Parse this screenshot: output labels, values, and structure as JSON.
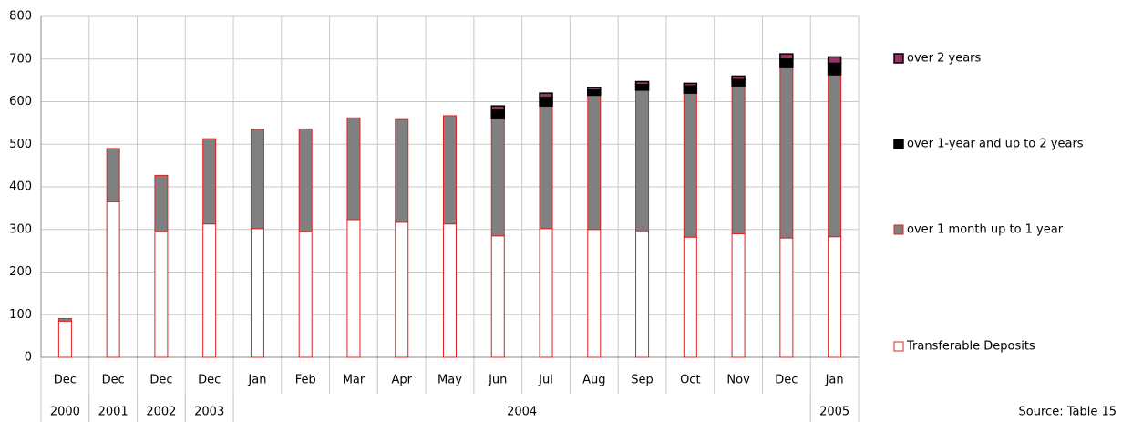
{
  "chart_data": {
    "type": "stacked-bar",
    "category_groups": [
      {
        "label": "2000",
        "categories": [
          "Dec"
        ]
      },
      {
        "label": "2001",
        "categories": [
          "Dec"
        ]
      },
      {
        "label": "2002",
        "categories": [
          "Dec"
        ]
      },
      {
        "label": "2003",
        "categories": [
          "Dec"
        ]
      },
      {
        "label": "2004",
        "categories": [
          "Jan",
          "Feb",
          "Mar",
          "Apr",
          "May",
          "Jun",
          "Jul",
          "Aug",
          "Sep",
          "Oct",
          "Nov",
          "Dec"
        ]
      },
      {
        "label": "2005",
        "categories": [
          "Jan"
        ]
      }
    ],
    "series": [
      {
        "name": "Transferable Deposits",
        "color": "#ffffff",
        "stroke": "#e02020",
        "values": [
          85,
          365,
          295,
          313,
          302,
          295,
          323,
          317,
          313,
          285,
          302,
          300,
          297,
          282,
          290,
          280,
          283
        ]
      },
      {
        "name": "over 1 month up to 1 year",
        "color": "#808080",
        "stroke": "#e02020",
        "values": [
          6,
          125,
          132,
          200,
          233,
          241,
          239,
          241,
          254,
          275,
          288,
          315,
          330,
          338,
          347,
          400,
          380
        ]
      },
      {
        "name": "over 1-year and up to 2 years",
        "color": "#000000",
        "stroke": "#000000",
        "values": [
          0,
          0,
          0,
          0,
          0,
          0,
          0,
          0,
          0,
          20,
          20,
          12,
          13,
          17,
          15,
          20,
          27
        ]
      },
      {
        "name": "over 2 years",
        "color": "#993366",
        "stroke": "#000000",
        "values": [
          0,
          0,
          0,
          0,
          0,
          0,
          0,
          0,
          0,
          10,
          10,
          6,
          7,
          6,
          8,
          12,
          15
        ]
      }
    ],
    "ylim": [
      0,
      800
    ],
    "yticks": [
      0,
      100,
      200,
      300,
      400,
      500,
      600,
      700,
      800
    ],
    "grid": true,
    "source": "Source: Table 15"
  }
}
